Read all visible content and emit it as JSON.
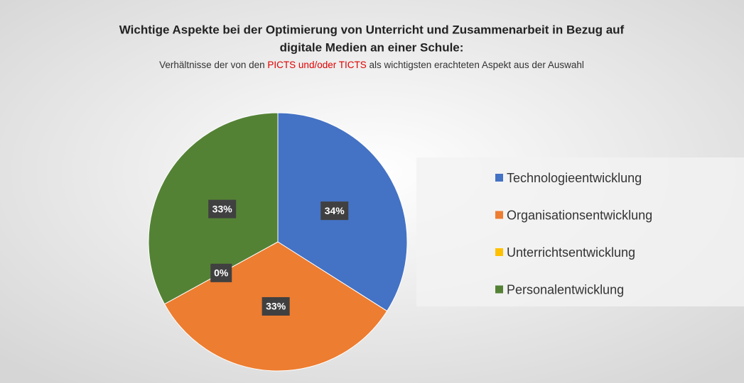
{
  "chart_data": {
    "type": "pie",
    "title_lines": [
      "Wichtige Aspekte bei der Optimierung von Unterricht und Zusammenarbeit in Bezug auf",
      "digitale Medien an einer Schule:"
    ],
    "subtitle_parts": [
      {
        "text": "Verhältnisse der von den ",
        "color": "#333333"
      },
      {
        "text": "PICTS und/oder TICTS",
        "color": "#e00000"
      },
      {
        "text": " als wichtigsten erachteten Aspekt aus der Auswahl",
        "color": "#333333"
      }
    ],
    "categories": [
      "Technologieentwicklung",
      "Organisationsentwicklung",
      "Unterrichtsentwicklung",
      "Personalentwicklung"
    ],
    "values": [
      34,
      33,
      0,
      33
    ],
    "value_labels": [
      "34%",
      "33%",
      "0%",
      "33%"
    ],
    "colors": [
      "#4472c4",
      "#ed7d31",
      "#ffc000",
      "#548235"
    ],
    "legend": "right"
  }
}
